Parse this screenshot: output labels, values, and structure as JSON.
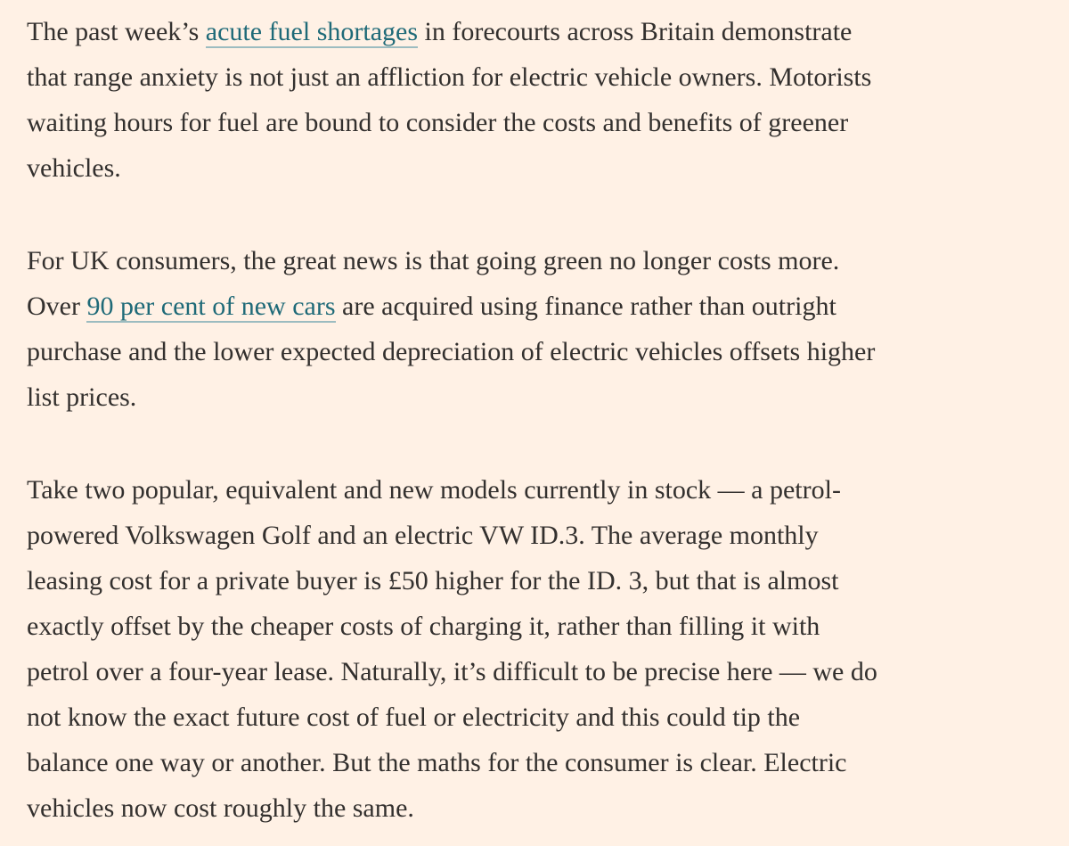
{
  "paragraphs": [
    {
      "lines": [
        [
          {
            "text": "The past week’s "
          },
          {
            "text": "acute fuel shortages",
            "link": true
          },
          {
            "text": " in forecourts across Britain demonstrate"
          }
        ],
        [
          {
            "text": "that range anxiety is not just an affliction for electric vehicle owners. Motorists"
          }
        ],
        [
          {
            "text": "waiting hours for fuel are bound to consider the costs and benefits of greener"
          }
        ],
        [
          {
            "text": "vehicles."
          }
        ]
      ]
    },
    {
      "lines": [
        [
          {
            "text": "For UK consumers, the great news is that going green no longer costs more."
          }
        ],
        [
          {
            "text": "Over "
          },
          {
            "text": "90 per cent of new cars",
            "link": true
          },
          {
            "text": " are acquired using finance rather than outright"
          }
        ],
        [
          {
            "text": "purchase and the lower expected depreciation of electric vehicles offsets higher"
          }
        ],
        [
          {
            "text": "list prices."
          }
        ]
      ]
    },
    {
      "lines": [
        [
          {
            "text": "Take two popular, equivalent and new models currently in stock — a petrol-"
          }
        ],
        [
          {
            "text": "powered Volkswagen Golf and an electric VW ID.3. The average monthly"
          }
        ],
        [
          {
            "text": "leasing cost for a private buyer is £50 higher for the ID. 3, but that is almost"
          }
        ],
        [
          {
            "text": "exactly offset by the cheaper costs of charging it, rather than filling it with"
          }
        ],
        [
          {
            "text": "petrol over a four-year lease. Naturally, it’s difficult to be precise here — we do"
          }
        ],
        [
          {
            "text": "not know the exact future cost of fuel or electricity and this could tip the"
          }
        ],
        [
          {
            "text": "balance one way or another. But the maths for the consumer is clear. Electric"
          }
        ],
        [
          {
            "text": "vehicles now cost roughly the same."
          }
        ]
      ]
    }
  ]
}
